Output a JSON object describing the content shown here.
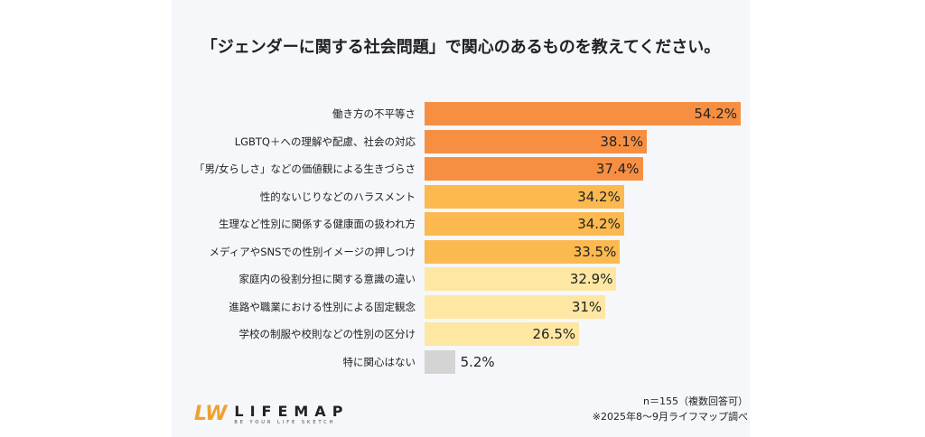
{
  "title": "「ジェンダーに関する社会問題」で関心のあるものを教えてください。",
  "chart_data": {
    "type": "bar",
    "orientation": "horizontal",
    "title": "「ジェンダーに関する社会問題」で関心のあるものを教えてください。",
    "categories": [
      "働き方の不平等さ",
      "LGBTQ＋への理解や配慮、社会の対応",
      "「男/女らしさ」などの価値観による生きづらさ",
      "性的ないじりなどのハラスメント",
      "生理など性別に関係する健康面の扱われ方",
      "メディアやSNSでの性別イメージの押しつけ",
      "家庭内の役割分担に関する意識の違い",
      "進路や職業における性別による固定観念",
      "学校の制服や校則などの性別の区分け",
      "特に関心はない"
    ],
    "values": [
      54.2,
      38.1,
      37.4,
      34.2,
      34.2,
      33.5,
      32.9,
      31,
      26.5,
      5.2
    ],
    "value_labels": [
      "54.2%",
      "38.1%",
      "37.4%",
      "34.2%",
      "34.2%",
      "33.5%",
      "32.9%",
      "31%",
      "26.5%",
      "5.2%"
    ],
    "colors": [
      "#f78f42",
      "#f78f42",
      "#f78f42",
      "#fbb94f",
      "#fbb94f",
      "#fbb94f",
      "#fde7a2",
      "#fde7a2",
      "#fde7a2",
      "#d4d4d4"
    ],
    "unit": "%",
    "grid": false
  },
  "logo": {
    "name": "LIFEMAP",
    "tagline": "BE YOUR LIFE SKETCH",
    "mark": "LW"
  },
  "notes": {
    "sample": "n＝155（複数回答可）",
    "source": "※2025年8〜9月ライフマップ調べ"
  }
}
